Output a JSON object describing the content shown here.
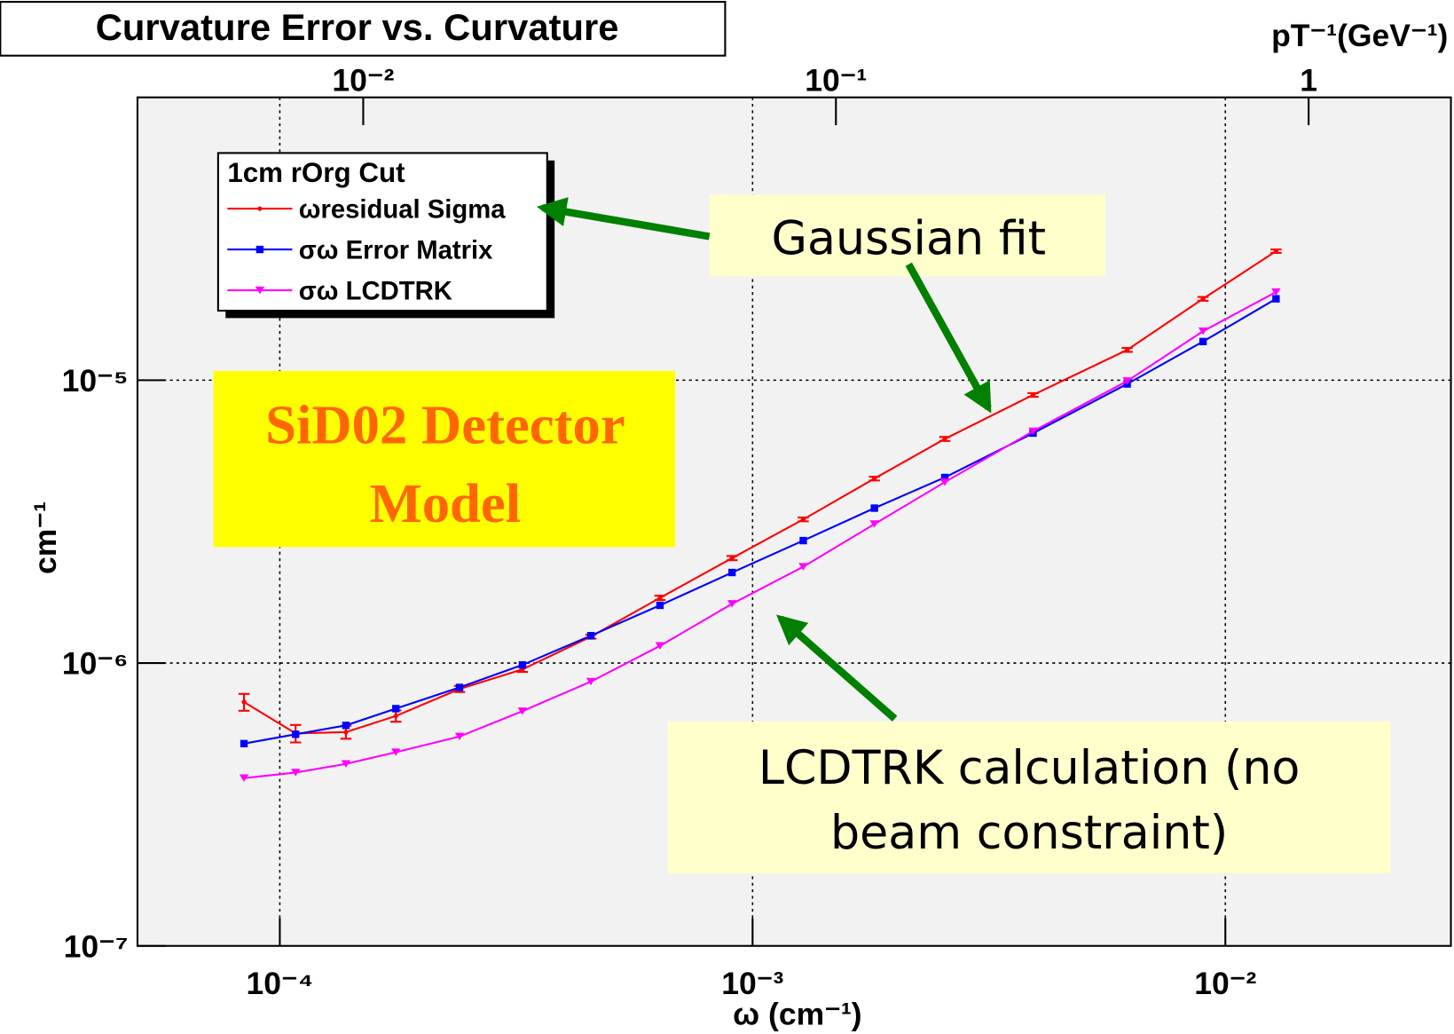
{
  "chart_data": {
    "type": "line",
    "title": "Curvature Error vs. Curvature",
    "xlabel": "ω (cm⁻¹)",
    "ylabel": "cm⁻¹",
    "x2label": "pT⁻¹(GeV⁻¹)",
    "xscale": "log",
    "yscale": "log",
    "x2scale": "log",
    "grid": true,
    "legend_title": "1cm rOrg Cut",
    "legend_position": "upper left",
    "xlim": [
      5e-05,
      0.03
    ],
    "xticks": [
      {
        "value": 0.0001,
        "label": "10⁻⁴"
      },
      {
        "value": 0.001,
        "label": "10⁻³"
      },
      {
        "value": 0.01,
        "label": "10⁻²"
      }
    ],
    "ylim": [
      1e-07,
      0.0001
    ],
    "yticks": [
      {
        "value": 1e-07,
        "label": "10⁻⁷"
      },
      {
        "value": 1e-06,
        "label": "10⁻⁶"
      },
      {
        "value": 1e-05,
        "label": "10⁻⁵"
      }
    ],
    "x2lim": [
      0.00333,
      2
    ],
    "x2ticks": [
      {
        "value": 0.01,
        "label": "10⁻²"
      },
      {
        "value": 0.1,
        "label": "10⁻¹"
      },
      1
    ],
    "x": [
      8.4e-05,
      0.000108,
      0.000138,
      0.000176,
      0.00024,
      0.000326,
      0.000455,
      0.000637,
      0.000905,
      0.00128,
      0.00181,
      0.00255,
      0.00392,
      0.0062,
      0.00897,
      0.0128
    ],
    "series": [
      {
        "name": "ωresidual Sigma",
        "color": "#ff0000",
        "marker": "point",
        "values": [
          7.28e-07,
          5.64e-07,
          5.7e-07,
          6.5e-07,
          8.1e-07,
          9.5e-07,
          1.24e-06,
          1.7e-06,
          2.35e-06,
          3.22e-06,
          4.49e-06,
          6.2e-06,
          8.87e-06,
          1.28e-05,
          1.94e-05,
          2.86e-05
        ],
        "errors": [
          5e-08,
          4e-08,
          3e-08,
          3e-08,
          2e-08,
          2e-08,
          2e-08,
          3e-08,
          4e-08,
          5e-08,
          7e-08,
          1e-07,
          1.3e-07,
          2e-07,
          3e-07,
          4e-07
        ]
      },
      {
        "name": "σω Error Matrix",
        "color": "#0000ff",
        "marker": "square",
        "values": [
          5.19e-07,
          5.6e-07,
          6.02e-07,
          6.9e-07,
          8.2e-07,
          9.85e-07,
          1.25e-06,
          1.6e-06,
          2.09e-06,
          2.71e-06,
          3.53e-06,
          4.53e-06,
          6.5e-06,
          9.7e-06,
          1.37e-05,
          1.94e-05
        ]
      },
      {
        "name": "σω LCDTRK",
        "color": "#ff00ff",
        "marker": "triangle",
        "values": [
          3.92e-07,
          4.1e-07,
          4.4e-07,
          4.84e-07,
          5.5e-07,
          6.76e-07,
          8.6e-07,
          1.15e-06,
          1.62e-06,
          2.19e-06,
          3.1e-06,
          4.36e-06,
          6.6e-06,
          9.93e-06,
          1.49e-05,
          2.05e-05
        ]
      }
    ],
    "annotations": [
      {
        "text": [
          "SiD02 Detector",
          "Model"
        ]
      },
      {
        "text": [
          "Gaussian fit"
        ]
      },
      {
        "text": [
          "LCDTRK calculation (no",
          "beam constraint)"
        ]
      }
    ]
  }
}
